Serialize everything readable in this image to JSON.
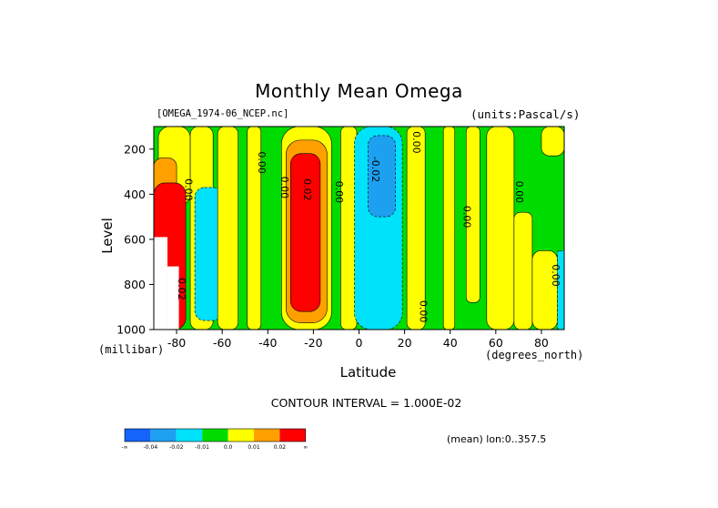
{
  "chart_data": {
    "type": "heatmap",
    "title": "Monthly Mean Omega",
    "dataset": "[OMEGA_1974-06_NCEP.nc]",
    "units": "(units:Pascal/s)",
    "xlabel": "Latitude",
    "x_units": "(degrees_north)",
    "ylabel": "Level",
    "y_units": "(millibar)",
    "xlim": [
      -90,
      90
    ],
    "ylim": [
      1000,
      100
    ],
    "x_ticks": [
      {
        "value": -80,
        "label": "-80"
      },
      {
        "value": -60,
        "label": "-60"
      },
      {
        "value": -40,
        "label": "-40"
      },
      {
        "value": -20,
        "label": "-20"
      },
      {
        "value": 0,
        "label": "0"
      },
      {
        "value": 20,
        "label": "20"
      },
      {
        "value": 40,
        "label": "40"
      },
      {
        "value": 60,
        "label": "60"
      },
      {
        "value": 80,
        "label": "80"
      }
    ],
    "y_ticks": [
      {
        "value": 200,
        "label": "200"
      },
      {
        "value": 400,
        "label": "400"
      },
      {
        "value": 600,
        "label": "600"
      },
      {
        "value": 800,
        "label": "800"
      },
      {
        "value": 1000,
        "label": "1000"
      }
    ],
    "contour_interval": "CONTOUR INTERVAL = 1.000E-02",
    "annotation": "(mean) lon:0..357.5",
    "levels": [
      {
        "label": "-∞",
        "range": [
          -1,
          -0.04
        ],
        "color": "#1464fa"
      },
      {
        "label": "-0.04",
        "range": [
          -0.04,
          -0.02
        ],
        "color": "#1ea0f0"
      },
      {
        "label": "-0.02",
        "range": [
          -0.02,
          -0.01
        ],
        "color": "#00e1fa"
      },
      {
        "label": "-0.01",
        "range": [
          -0.01,
          0.0
        ],
        "color": "#00dc00"
      },
      {
        "label": "0.0",
        "range": [
          0.0,
          0.01
        ],
        "color": "#ffff00"
      },
      {
        "label": "0.01",
        "range": [
          0.01,
          0.02
        ],
        "color": "#ffa000"
      },
      {
        "label": "0.02",
        "range": [
          0.02,
          1
        ],
        "color": "#ff0000"
      },
      {
        "label": "∞",
        "range": null,
        "color": null
      }
    ],
    "regions": [
      {
        "lat": [
          -90,
          90
        ],
        "lev": [
          100,
          1000
        ],
        "value": -0.005,
        "color": "#00dc00"
      },
      {
        "lat": [
          -88,
          -74
        ],
        "lev": [
          100,
          450
        ],
        "value": 0.005,
        "color": "#ffff00"
      },
      {
        "lat": [
          -74,
          -64
        ],
        "lev": [
          100,
          1000
        ],
        "value": 0.005,
        "color": "#ffff00"
      },
      {
        "lat": [
          -90,
          -80
        ],
        "lev": [
          240,
          560
        ],
        "value": 0.015,
        "color": "#ffa000"
      },
      {
        "lat": [
          -90,
          -76
        ],
        "lev": [
          350,
          1000
        ],
        "value": 0.025,
        "color": "#ff0000"
      },
      {
        "lat": [
          -72,
          -60
        ],
        "lev": [
          370,
          960
        ],
        "value": -0.015,
        "color": "#00e1fa"
      },
      {
        "lat": [
          -62,
          -53
        ],
        "lev": [
          100,
          1000
        ],
        "value": 0.005,
        "color": "#ffff00"
      },
      {
        "lat": [
          -49,
          -43
        ],
        "lev": [
          100,
          1000
        ],
        "value": 0.005,
        "color": "#ffff00"
      },
      {
        "lat": [
          -34,
          -12
        ],
        "lev": [
          100,
          1000
        ],
        "value": 0.005,
        "color": "#ffff00"
      },
      {
        "lat": [
          -32,
          -14
        ],
        "lev": [
          160,
          970
        ],
        "value": 0.015,
        "color": "#ffa000"
      },
      {
        "lat": [
          -30,
          -17
        ],
        "lev": [
          220,
          920
        ],
        "value": 0.025,
        "color": "#ff0000"
      },
      {
        "lat": [
          -8,
          -1
        ],
        "lev": [
          100,
          1000
        ],
        "value": 0.005,
        "color": "#ffff00"
      },
      {
        "lat": [
          -2,
          19
        ],
        "lev": [
          100,
          1000
        ],
        "value": -0.015,
        "color": "#00e1fa"
      },
      {
        "lat": [
          4,
          16
        ],
        "lev": [
          140,
          500
        ],
        "value": -0.03,
        "color": "#1ea0f0"
      },
      {
        "lat": [
          21,
          29
        ],
        "lev": [
          100,
          1000
        ],
        "value": 0.005,
        "color": "#ffff00"
      },
      {
        "lat": [
          37,
          42
        ],
        "lev": [
          100,
          1000
        ],
        "value": 0.005,
        "color": "#ffff00"
      },
      {
        "lat": [
          47,
          53
        ],
        "lev": [
          100,
          880
        ],
        "value": 0.005,
        "color": "#ffff00"
      },
      {
        "lat": [
          56,
          68
        ],
        "lev": [
          100,
          1000
        ],
        "value": 0.005,
        "color": "#ffff00"
      },
      {
        "lat": [
          68,
          76
        ],
        "lev": [
          480,
          1000
        ],
        "value": 0.005,
        "color": "#ffff00"
      },
      {
        "lat": [
          76,
          87
        ],
        "lev": [
          650,
          1000
        ],
        "value": 0.005,
        "color": "#ffff00"
      },
      {
        "lat": [
          87,
          90
        ],
        "lev": [
          650,
          1000
        ],
        "value": -0.015,
        "color": "#00e1fa"
      },
      {
        "lat": [
          80,
          90
        ],
        "lev": [
          100,
          230
        ],
        "value": 0.005,
        "color": "#ffff00"
      }
    ],
    "missing": [
      {
        "lat": [
          -90,
          -84
        ],
        "lev": [
          590,
          1000
        ]
      },
      {
        "lat": [
          -84,
          -79
        ],
        "lev": [
          720,
          1000
        ]
      }
    ],
    "contour_labels": [
      {
        "text": "0.00",
        "lat": -75,
        "lev": 380
      },
      {
        "text": "0.00",
        "lat": -43,
        "lev": 260
      },
      {
        "text": "0.00",
        "lat": -33,
        "lev": 370
      },
      {
        "text": "0.02",
        "lat": -23,
        "lev": 380
      },
      {
        "text": "0.00",
        "lat": -9,
        "lev": 390
      },
      {
        "text": "-0.02",
        "lat": 7,
        "lev": 290
      },
      {
        "text": "0.00",
        "lat": 25,
        "lev": 170
      },
      {
        "text": "0.00",
        "lat": 47,
        "lev": 500
      },
      {
        "text": "0.00",
        "lat": 28,
        "lev": 920
      },
      {
        "text": "0.00",
        "lat": 70,
        "lev": 390
      },
      {
        "text": "0.00",
        "lat": 86,
        "lev": 760
      },
      {
        "text": "0.02",
        "lat": -78,
        "lev": 820
      }
    ]
  }
}
